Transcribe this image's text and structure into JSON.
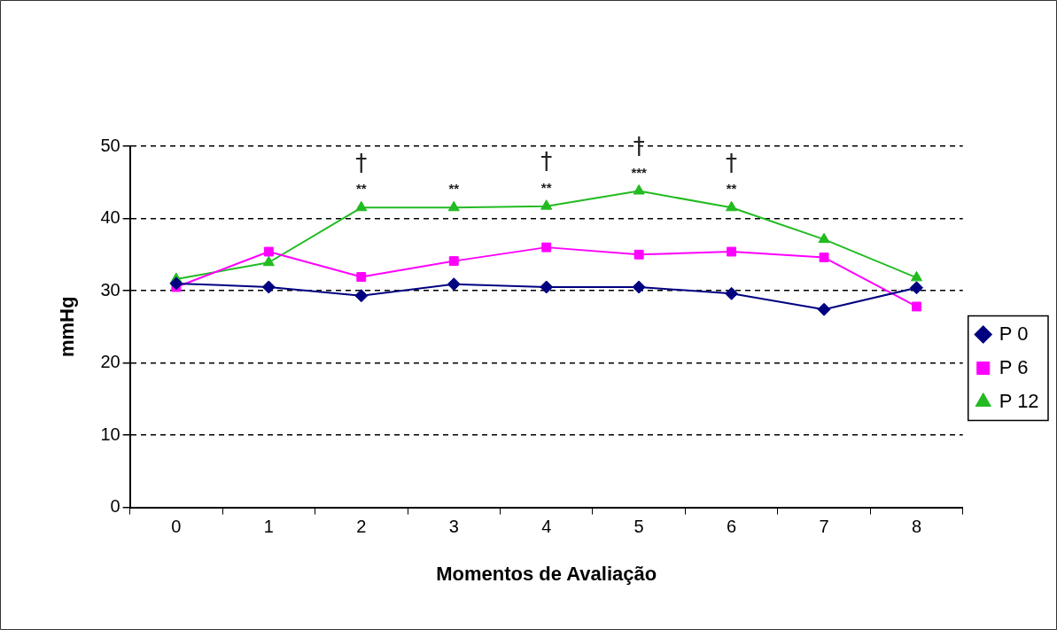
{
  "chart_data": {
    "type": "line",
    "xlabel": "Momentos de Avaliação",
    "ylabel": "mmHg",
    "categories": [
      "0",
      "1",
      "2",
      "3",
      "4",
      "5",
      "6",
      "7",
      "8"
    ],
    "series": [
      {
        "name": "P 0",
        "color": "#000080",
        "marker": "diamond",
        "values": [
          31.0,
          30.5,
          29.3,
          30.9,
          30.5,
          30.5,
          29.6,
          27.4,
          30.4
        ]
      },
      {
        "name": "P 6",
        "color": "#ff00ff",
        "marker": "square",
        "values": [
          30.5,
          35.4,
          31.9,
          34.1,
          36.0,
          35.0,
          35.4,
          34.6,
          27.8
        ]
      },
      {
        "name": "P 12",
        "color": "#22bb22",
        "marker": "triangle",
        "values": [
          31.6,
          33.9,
          41.5,
          41.5,
          41.7,
          43.8,
          41.5,
          37.1,
          31.8
        ]
      }
    ],
    "ylim": [
      0,
      50
    ],
    "yticks": [
      0,
      10,
      20,
      30,
      40,
      50
    ],
    "grid": "y",
    "legend": "right",
    "line_style": "solid",
    "annotations": [
      {
        "text": "**",
        "x": "2",
        "y": 41.5
      },
      {
        "text": "†",
        "x": "2",
        "y": 41.5
      },
      {
        "text": "**",
        "x": "3",
        "y": 41.5
      },
      {
        "text": "**",
        "x": "4",
        "y": 41.7
      },
      {
        "text": "†",
        "x": "4",
        "y": 41.7
      },
      {
        "text": "***",
        "x": "5",
        "y": 43.8
      },
      {
        "text": "†",
        "x": "5",
        "y": 43.8
      },
      {
        "text": "**",
        "x": "6",
        "y": 41.5
      },
      {
        "text": "†",
        "x": "6",
        "y": 41.5
      }
    ]
  }
}
